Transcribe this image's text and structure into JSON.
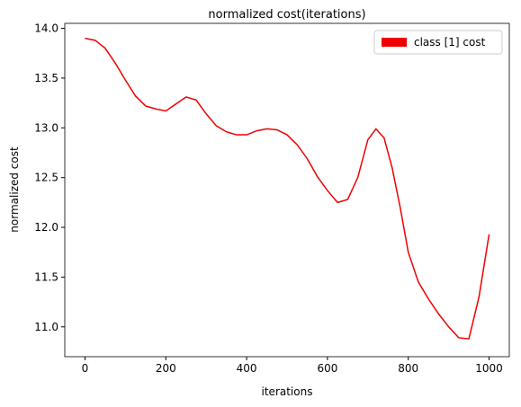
{
  "chart_data": {
    "type": "line",
    "title": "normalized cost(iterations)",
    "xlabel": "iterations",
    "ylabel": "normalized cost",
    "x": [
      0,
      25,
      50,
      75,
      100,
      125,
      150,
      175,
      200,
      225,
      250,
      275,
      300,
      325,
      350,
      375,
      400,
      425,
      450,
      475,
      500,
      525,
      550,
      575,
      600,
      625,
      650,
      675,
      700,
      720,
      740,
      760,
      780,
      800,
      825,
      850,
      875,
      900,
      925,
      950,
      975,
      1000
    ],
    "series": [
      {
        "name": "class [1] cost",
        "color": "#ee0000",
        "values": [
          13.9,
          13.88,
          13.8,
          13.65,
          13.48,
          13.32,
          13.22,
          13.19,
          13.17,
          13.24,
          13.31,
          13.28,
          13.14,
          13.02,
          12.96,
          12.93,
          12.93,
          12.97,
          12.99,
          12.98,
          12.93,
          12.83,
          12.69,
          12.51,
          12.37,
          12.25,
          12.28,
          12.5,
          12.88,
          12.99,
          12.9,
          12.6,
          12.2,
          11.75,
          11.45,
          11.28,
          11.13,
          11.0,
          10.89,
          10.88,
          11.3,
          11.93
        ]
      }
    ],
    "xlim": [
      -50,
      1050
    ],
    "ylim": [
      10.7,
      14.05
    ],
    "xticks": [
      0,
      200,
      400,
      600,
      800,
      1000
    ],
    "yticks": [
      {
        "value": 11,
        "label": "11.0"
      },
      11.5,
      {
        "value": 12,
        "label": "12.0"
      },
      12.5,
      {
        "value": 13,
        "label": "13.0"
      },
      13.5,
      {
        "value": 14,
        "label": "14.0"
      }
    ],
    "legend": "upper right"
  }
}
